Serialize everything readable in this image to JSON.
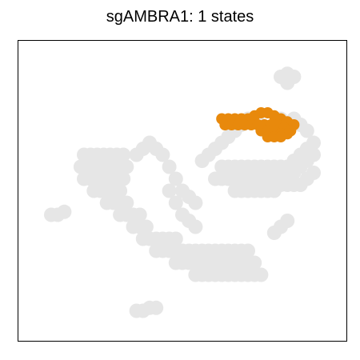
{
  "chart_data": {
    "type": "scatter",
    "title": "sgAMBRA1: 1 states",
    "xlabel": "",
    "ylabel": "",
    "grid": false,
    "legend": "none",
    "axes_visible": false,
    "colors": {
      "background_cells": "#e6e6e6",
      "highlighted_state": "#e8890c",
      "frame": "#000000"
    },
    "series": [
      {
        "role": "all cells (background)",
        "color": "#e6e6e6",
        "points": [
          [
            0.2,
            0.62
          ],
          [
            0.22,
            0.62
          ],
          [
            0.24,
            0.62
          ],
          [
            0.26,
            0.62
          ],
          [
            0.28,
            0.62
          ],
          [
            0.3,
            0.62
          ],
          [
            0.32,
            0.62
          ],
          [
            0.19,
            0.58
          ],
          [
            0.21,
            0.58
          ],
          [
            0.23,
            0.58
          ],
          [
            0.25,
            0.58
          ],
          [
            0.27,
            0.58
          ],
          [
            0.29,
            0.58
          ],
          [
            0.31,
            0.58
          ],
          [
            0.33,
            0.58
          ],
          [
            0.2,
            0.54
          ],
          [
            0.22,
            0.54
          ],
          [
            0.24,
            0.54
          ],
          [
            0.26,
            0.54
          ],
          [
            0.28,
            0.54
          ],
          [
            0.3,
            0.54
          ],
          [
            0.32,
            0.54
          ],
          [
            0.23,
            0.5
          ],
          [
            0.25,
            0.5
          ],
          [
            0.27,
            0.5
          ],
          [
            0.29,
            0.5
          ],
          [
            0.31,
            0.5
          ],
          [
            0.27,
            0.46
          ],
          [
            0.29,
            0.46
          ],
          [
            0.31,
            0.46
          ],
          [
            0.33,
            0.46
          ],
          [
            0.31,
            0.42
          ],
          [
            0.33,
            0.42
          ],
          [
            0.35,
            0.42
          ],
          [
            0.37,
            0.42
          ],
          [
            0.35,
            0.38
          ],
          [
            0.37,
            0.38
          ],
          [
            0.39,
            0.38
          ],
          [
            0.38,
            0.34
          ],
          [
            0.4,
            0.34
          ],
          [
            0.42,
            0.34
          ],
          [
            0.44,
            0.34
          ],
          [
            0.46,
            0.34
          ],
          [
            0.48,
            0.34
          ],
          [
            0.42,
            0.3
          ],
          [
            0.44,
            0.3
          ],
          [
            0.46,
            0.3
          ],
          [
            0.48,
            0.3
          ],
          [
            0.5,
            0.3
          ],
          [
            0.52,
            0.3
          ],
          [
            0.54,
            0.3
          ],
          [
            0.56,
            0.3
          ],
          [
            0.58,
            0.3
          ],
          [
            0.6,
            0.3
          ],
          [
            0.62,
            0.3
          ],
          [
            0.64,
            0.3
          ],
          [
            0.66,
            0.3
          ],
          [
            0.68,
            0.3
          ],
          [
            0.7,
            0.3
          ],
          [
            0.48,
            0.26
          ],
          [
            0.5,
            0.26
          ],
          [
            0.52,
            0.26
          ],
          [
            0.54,
            0.26
          ],
          [
            0.56,
            0.26
          ],
          [
            0.58,
            0.26
          ],
          [
            0.6,
            0.26
          ],
          [
            0.62,
            0.26
          ],
          [
            0.64,
            0.26
          ],
          [
            0.66,
            0.26
          ],
          [
            0.68,
            0.26
          ],
          [
            0.7,
            0.26
          ],
          [
            0.72,
            0.26
          ],
          [
            0.54,
            0.22
          ],
          [
            0.56,
            0.22
          ],
          [
            0.58,
            0.22
          ],
          [
            0.6,
            0.22
          ],
          [
            0.62,
            0.22
          ],
          [
            0.64,
            0.22
          ],
          [
            0.66,
            0.22
          ],
          [
            0.68,
            0.22
          ],
          [
            0.7,
            0.22
          ],
          [
            0.72,
            0.22
          ],
          [
            0.74,
            0.22
          ],
          [
            0.36,
            0.62
          ],
          [
            0.38,
            0.64
          ],
          [
            0.4,
            0.66
          ],
          [
            0.42,
            0.64
          ],
          [
            0.44,
            0.62
          ],
          [
            0.46,
            0.58
          ],
          [
            0.48,
            0.54
          ],
          [
            0.5,
            0.5
          ],
          [
            0.52,
            0.48
          ],
          [
            0.54,
            0.46
          ],
          [
            0.46,
            0.5
          ],
          [
            0.48,
            0.46
          ],
          [
            0.5,
            0.42
          ],
          [
            0.52,
            0.4
          ],
          [
            0.54,
            0.38
          ],
          [
            0.56,
            0.6
          ],
          [
            0.58,
            0.62
          ],
          [
            0.6,
            0.64
          ],
          [
            0.62,
            0.66
          ],
          [
            0.64,
            0.68
          ],
          [
            0.66,
            0.7
          ],
          [
            0.68,
            0.72
          ],
          [
            0.7,
            0.74
          ],
          [
            0.62,
            0.58
          ],
          [
            0.64,
            0.58
          ],
          [
            0.66,
            0.58
          ],
          [
            0.68,
            0.58
          ],
          [
            0.7,
            0.58
          ],
          [
            0.72,
            0.58
          ],
          [
            0.74,
            0.58
          ],
          [
            0.76,
            0.58
          ],
          [
            0.78,
            0.58
          ],
          [
            0.8,
            0.58
          ],
          [
            0.82,
            0.58
          ],
          [
            0.84,
            0.6
          ],
          [
            0.86,
            0.62
          ],
          [
            0.88,
            0.64
          ],
          [
            0.9,
            0.66
          ],
          [
            0.6,
            0.54
          ],
          [
            0.62,
            0.54
          ],
          [
            0.64,
            0.54
          ],
          [
            0.66,
            0.54
          ],
          [
            0.68,
            0.54
          ],
          [
            0.7,
            0.54
          ],
          [
            0.72,
            0.54
          ],
          [
            0.74,
            0.54
          ],
          [
            0.76,
            0.54
          ],
          [
            0.78,
            0.54
          ],
          [
            0.8,
            0.54
          ],
          [
            0.82,
            0.54
          ],
          [
            0.84,
            0.56
          ],
          [
            0.86,
            0.58
          ],
          [
            0.88,
            0.6
          ],
          [
            0.9,
            0.62
          ],
          [
            0.66,
            0.5
          ],
          [
            0.68,
            0.5
          ],
          [
            0.7,
            0.5
          ],
          [
            0.72,
            0.5
          ],
          [
            0.74,
            0.5
          ],
          [
            0.76,
            0.5
          ],
          [
            0.78,
            0.5
          ],
          [
            0.8,
            0.52
          ],
          [
            0.82,
            0.52
          ],
          [
            0.84,
            0.52
          ],
          [
            0.86,
            0.52
          ],
          [
            0.88,
            0.54
          ],
          [
            0.9,
            0.56
          ],
          [
            0.88,
            0.7
          ],
          [
            0.86,
            0.72
          ],
          [
            0.84,
            0.74
          ],
          [
            0.8,
            0.74
          ],
          [
            0.78,
            0.72
          ],
          [
            0.74,
            0.72
          ],
          [
            0.78,
            0.36
          ],
          [
            0.8,
            0.38
          ],
          [
            0.82,
            0.4
          ],
          [
            0.1,
            0.42
          ],
          [
            0.12,
            0.42
          ],
          [
            0.14,
            0.43
          ],
          [
            0.36,
            0.1
          ],
          [
            0.38,
            0.1
          ],
          [
            0.4,
            0.11
          ],
          [
            0.42,
            0.11
          ],
          [
            0.8,
            0.88
          ],
          [
            0.82,
            0.89
          ],
          [
            0.84,
            0.88
          ],
          [
            0.82,
            0.86
          ]
        ]
      },
      {
        "role": "sgAMBRA1 state (highlighted)",
        "color": "#e8890c",
        "points": [
          [
            0.62,
            0.74
          ],
          [
            0.64,
            0.74
          ],
          [
            0.66,
            0.74
          ],
          [
            0.68,
            0.74
          ],
          [
            0.7,
            0.74
          ],
          [
            0.72,
            0.75
          ],
          [
            0.74,
            0.76
          ],
          [
            0.76,
            0.76
          ],
          [
            0.78,
            0.75
          ],
          [
            0.8,
            0.74
          ],
          [
            0.82,
            0.73
          ],
          [
            0.84,
            0.72
          ],
          [
            0.63,
            0.72
          ],
          [
            0.65,
            0.72
          ],
          [
            0.67,
            0.72
          ],
          [
            0.69,
            0.72
          ],
          [
            0.71,
            0.72
          ],
          [
            0.73,
            0.72
          ],
          [
            0.75,
            0.72
          ],
          [
            0.77,
            0.72
          ],
          [
            0.79,
            0.72
          ],
          [
            0.81,
            0.71
          ],
          [
            0.83,
            0.7
          ],
          [
            0.74,
            0.7
          ],
          [
            0.76,
            0.7
          ],
          [
            0.78,
            0.7
          ],
          [
            0.8,
            0.69
          ],
          [
            0.82,
            0.69
          ],
          [
            0.76,
            0.68
          ],
          [
            0.78,
            0.68
          ],
          [
            0.8,
            0.68
          ]
        ]
      }
    ]
  }
}
